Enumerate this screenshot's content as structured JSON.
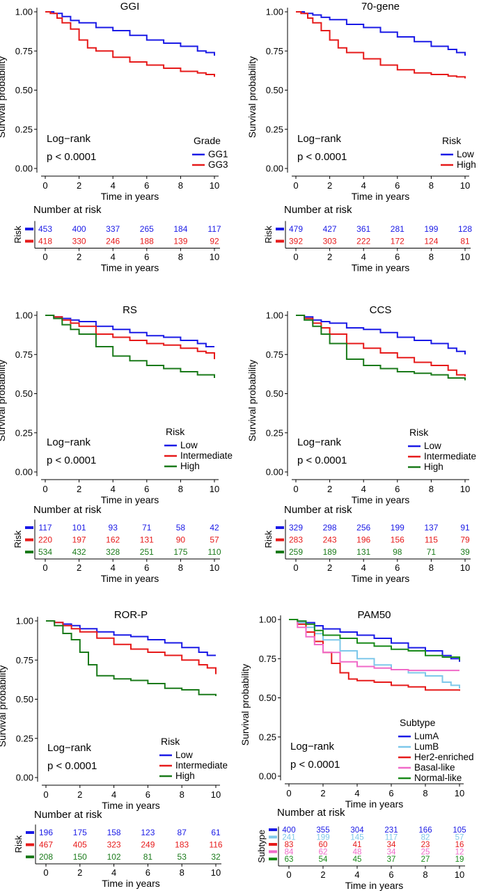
{
  "figure": {
    "y_axis_label": "Survival probability",
    "x_axis_label": "Time in years",
    "risk_table_title": "Number at risk",
    "logrank_label": "Log−rank",
    "pvalue_label": "p < 0.0001"
  },
  "chart_data": [
    {
      "type": "line",
      "title": "GGI",
      "xlabel": "Time in years",
      "ylabel": "Survival probability",
      "xlim": [
        0,
        10
      ],
      "ylim": [
        0,
        1
      ],
      "xticks": [
        0,
        2,
        4,
        6,
        8,
        10
      ],
      "yticks": [
        "0.00",
        "0.25",
        "0.50",
        "0.75",
        "1.00"
      ],
      "legend_title": "Grade",
      "risk_table_label": "Risk",
      "series": [
        {
          "name": "GG1",
          "color": "#1a1ae6",
          "x": [
            0,
            0.5,
            1,
            1.5,
            2,
            3,
            4,
            5,
            6,
            7,
            8,
            9,
            9.5,
            10
          ],
          "y": [
            1.0,
            0.99,
            0.97,
            0.945,
            0.93,
            0.9,
            0.88,
            0.85,
            0.82,
            0.8,
            0.78,
            0.75,
            0.74,
            0.72
          ],
          "at_risk": [
            453,
            400,
            337,
            265,
            184,
            117
          ]
        },
        {
          "name": "GG3",
          "color": "#e61a1a",
          "x": [
            0,
            0.3,
            0.7,
            1,
            1.5,
            2,
            2.5,
            3,
            4,
            5,
            6,
            7,
            8,
            9,
            9.5,
            10
          ],
          "y": [
            1.0,
            0.99,
            0.96,
            0.93,
            0.89,
            0.82,
            0.77,
            0.75,
            0.71,
            0.68,
            0.66,
            0.64,
            0.62,
            0.61,
            0.6,
            0.585
          ],
          "at_risk": [
            418,
            330,
            246,
            188,
            139,
            92
          ]
        }
      ]
    },
    {
      "type": "line",
      "title": "70-gene",
      "xlabel": "Time in years",
      "ylabel": "Survival probability",
      "xlim": [
        0,
        10
      ],
      "ylim": [
        0,
        1
      ],
      "xticks": [
        0,
        2,
        4,
        6,
        8,
        10
      ],
      "yticks": [
        "0.00",
        "0.25",
        "0.50",
        "0.75",
        "1.00"
      ],
      "legend_title": "Risk",
      "risk_table_label": "Risk",
      "series": [
        {
          "name": "Low",
          "color": "#1a1ae6",
          "x": [
            0,
            0.5,
            1,
            1.5,
            2,
            3,
            4,
            5,
            6,
            7,
            8,
            9,
            9.5,
            10
          ],
          "y": [
            1.0,
            0.99,
            0.98,
            0.965,
            0.95,
            0.92,
            0.9,
            0.87,
            0.84,
            0.81,
            0.78,
            0.76,
            0.74,
            0.72
          ],
          "at_risk": [
            479,
            427,
            361,
            281,
            199,
            128
          ]
        },
        {
          "name": "High",
          "color": "#e61a1a",
          "x": [
            0,
            0.3,
            0.7,
            1,
            1.5,
            2,
            2.5,
            3,
            4,
            5,
            6,
            7,
            8,
            9,
            9.5,
            10
          ],
          "y": [
            1.0,
            0.99,
            0.96,
            0.93,
            0.88,
            0.82,
            0.77,
            0.74,
            0.7,
            0.66,
            0.63,
            0.61,
            0.6,
            0.59,
            0.585,
            0.575
          ],
          "at_risk": [
            392,
            303,
            222,
            172,
            124,
            81
          ]
        }
      ]
    },
    {
      "type": "line",
      "title": "RS",
      "xlabel": "Time in years",
      "ylabel": "Survival probability",
      "xlim": [
        0,
        10
      ],
      "ylim": [
        0,
        1
      ],
      "xticks": [
        0,
        2,
        4,
        6,
        8,
        10
      ],
      "yticks": [
        "0.00",
        "0.25",
        "0.50",
        "0.75",
        "1.00"
      ],
      "legend_title": "Risk",
      "risk_table_label": "Risk",
      "series": [
        {
          "name": "Low",
          "color": "#1a1ae6",
          "x": [
            0,
            0.5,
            1,
            1.5,
            2,
            3,
            4,
            5,
            6,
            7,
            8,
            9,
            9.5,
            10
          ],
          "y": [
            1.0,
            0.99,
            0.98,
            0.97,
            0.96,
            0.93,
            0.91,
            0.89,
            0.87,
            0.86,
            0.84,
            0.82,
            0.8,
            0.8
          ],
          "at_risk": [
            117,
            101,
            93,
            71,
            58,
            42
          ]
        },
        {
          "name": "Intermediate",
          "color": "#e61a1a",
          "x": [
            0,
            0.5,
            1,
            1.5,
            2,
            3,
            4,
            5,
            6,
            7,
            8,
            9,
            9.5,
            10
          ],
          "y": [
            1.0,
            0.99,
            0.97,
            0.95,
            0.93,
            0.88,
            0.86,
            0.84,
            0.82,
            0.81,
            0.79,
            0.77,
            0.76,
            0.72
          ],
          "at_risk": [
            220,
            197,
            162,
            131,
            90,
            57
          ]
        },
        {
          "name": "High",
          "color": "#1a7a1a",
          "x": [
            0,
            0.5,
            1,
            1.5,
            2,
            3,
            4,
            5,
            6,
            7,
            8,
            9,
            10
          ],
          "y": [
            1.0,
            0.98,
            0.94,
            0.91,
            0.88,
            0.8,
            0.74,
            0.71,
            0.68,
            0.66,
            0.64,
            0.62,
            0.6
          ],
          "at_risk": [
            534,
            432,
            328,
            251,
            175,
            110
          ]
        }
      ]
    },
    {
      "type": "line",
      "title": "CCS",
      "xlabel": "Time in years",
      "ylabel": "Survival probability",
      "xlim": [
        0,
        10
      ],
      "ylim": [
        0,
        1
      ],
      "xticks": [
        0,
        2,
        4,
        6,
        8,
        10
      ],
      "yticks": [
        "0.00",
        "0.25",
        "0.50",
        "0.75",
        "1.00"
      ],
      "legend_title": "Risk",
      "risk_table_label": "Risk",
      "series": [
        {
          "name": "Low",
          "color": "#1a1ae6",
          "x": [
            0,
            0.5,
            1,
            1.5,
            2,
            3,
            4,
            5,
            6,
            7,
            8,
            9,
            9.5,
            10
          ],
          "y": [
            1.0,
            0.99,
            0.97,
            0.96,
            0.95,
            0.92,
            0.91,
            0.89,
            0.86,
            0.84,
            0.82,
            0.79,
            0.77,
            0.75
          ],
          "at_risk": [
            329,
            298,
            256,
            199,
            137,
            91
          ]
        },
        {
          "name": "Intermediate",
          "color": "#e61a1a",
          "x": [
            0,
            0.5,
            1,
            1.5,
            2,
            3,
            4,
            5,
            6,
            7,
            8,
            9,
            9.5,
            10
          ],
          "y": [
            1.0,
            0.98,
            0.95,
            0.92,
            0.88,
            0.82,
            0.79,
            0.76,
            0.73,
            0.7,
            0.68,
            0.65,
            0.62,
            0.61
          ],
          "at_risk": [
            283,
            243,
            196,
            156,
            115,
            79
          ]
        },
        {
          "name": "High",
          "color": "#1a7a1a",
          "x": [
            0,
            0.5,
            1,
            1.5,
            2,
            3,
            4,
            5,
            6,
            7,
            8,
            9,
            10
          ],
          "y": [
            1.0,
            0.97,
            0.93,
            0.88,
            0.82,
            0.72,
            0.68,
            0.66,
            0.64,
            0.63,
            0.62,
            0.6,
            0.585
          ],
          "at_risk": [
            259,
            189,
            131,
            98,
            71,
            39
          ]
        }
      ]
    },
    {
      "type": "line",
      "title": "ROR-P",
      "xlabel": "Time in years",
      "ylabel": "Survival probability",
      "xlim": [
        0,
        10
      ],
      "ylim": [
        0,
        1
      ],
      "xticks": [
        0,
        2,
        4,
        6,
        8,
        10
      ],
      "yticks": [
        "0.00",
        "0.25",
        "0.50",
        "0.75",
        "1.00"
      ],
      "legend_title": "Risk",
      "risk_table_label": "Risk",
      "series": [
        {
          "name": "Low",
          "color": "#1a1ae6",
          "x": [
            0,
            0.5,
            1,
            1.5,
            2,
            3,
            4,
            5,
            6,
            7,
            8,
            9,
            9.5,
            10
          ],
          "y": [
            1.0,
            0.99,
            0.98,
            0.97,
            0.95,
            0.93,
            0.91,
            0.9,
            0.88,
            0.86,
            0.83,
            0.8,
            0.78,
            0.78
          ],
          "at_risk": [
            196,
            175,
            158,
            123,
            87,
            61
          ]
        },
        {
          "name": "Intermediate",
          "color": "#e61a1a",
          "x": [
            0,
            0.5,
            1,
            1.5,
            2,
            3,
            4,
            5,
            6,
            7,
            8,
            9,
            9.5,
            10
          ],
          "y": [
            1.0,
            0.99,
            0.97,
            0.95,
            0.93,
            0.89,
            0.85,
            0.82,
            0.8,
            0.78,
            0.75,
            0.72,
            0.7,
            0.66
          ],
          "at_risk": [
            467,
            405,
            323,
            249,
            183,
            116
          ]
        },
        {
          "name": "High",
          "color": "#1a7a1a",
          "x": [
            0,
            0.5,
            1,
            1.5,
            2,
            2.5,
            3,
            4,
            5,
            6,
            7,
            8,
            9,
            10
          ],
          "y": [
            1.0,
            0.97,
            0.92,
            0.88,
            0.8,
            0.72,
            0.65,
            0.63,
            0.62,
            0.6,
            0.57,
            0.56,
            0.53,
            0.52
          ],
          "at_risk": [
            208,
            150,
            102,
            81,
            53,
            32
          ]
        }
      ]
    },
    {
      "type": "line",
      "title": "PAM50",
      "xlabel": "Time in years",
      "ylabel": "Survival probability",
      "xlim": [
        0,
        10
      ],
      "ylim": [
        0,
        1
      ],
      "xticks": [
        0,
        2,
        4,
        6,
        8,
        10
      ],
      "yticks": [
        "0.00",
        "0.25",
        "0.50",
        "0.75",
        "1.00"
      ],
      "legend_title": "Subtype",
      "risk_table_label": "Subtype",
      "series": [
        {
          "name": "LumA",
          "color": "#1a1ae6",
          "x": [
            0,
            0.5,
            1,
            1.5,
            2,
            3,
            4,
            5,
            6,
            7,
            8,
            9,
            9.5,
            10
          ],
          "y": [
            1.0,
            0.99,
            0.98,
            0.96,
            0.94,
            0.92,
            0.9,
            0.88,
            0.85,
            0.82,
            0.8,
            0.77,
            0.75,
            0.73
          ],
          "at_risk": [
            400,
            355,
            304,
            231,
            166,
            105
          ]
        },
        {
          "name": "LumB",
          "color": "#7ec8ea",
          "x": [
            0,
            0.5,
            1,
            1.5,
            2,
            3,
            4,
            5,
            6,
            7,
            8,
            9,
            9.5,
            10
          ],
          "y": [
            1.0,
            0.98,
            0.95,
            0.91,
            0.87,
            0.8,
            0.75,
            0.71,
            0.68,
            0.66,
            0.64,
            0.6,
            0.58,
            0.56
          ],
          "at_risk": [
            241,
            199,
            145,
            117,
            82,
            57
          ]
        },
        {
          "name": "Her2-enriched",
          "color": "#e61a1a",
          "x": [
            0,
            0.5,
            1,
            1.5,
            2,
            2.5,
            3,
            3.5,
            4,
            5,
            6,
            7,
            8,
            9,
            10
          ],
          "y": [
            1.0,
            0.97,
            0.92,
            0.86,
            0.79,
            0.72,
            0.66,
            0.62,
            0.61,
            0.6,
            0.58,
            0.57,
            0.55,
            0.55,
            0.545
          ],
          "at_risk": [
            83,
            60,
            41,
            34,
            23,
            16
          ]
        },
        {
          "name": "Basal-like",
          "color": "#f06ac8",
          "x": [
            0,
            0.5,
            1,
            1.5,
            2,
            3,
            4,
            5,
            6,
            7,
            8,
            10
          ],
          "y": [
            1.0,
            0.95,
            0.89,
            0.84,
            0.79,
            0.73,
            0.7,
            0.69,
            0.68,
            0.675,
            0.675,
            0.675
          ],
          "at_risk": [
            84,
            62,
            48,
            34,
            25,
            12
          ]
        },
        {
          "name": "Normal-like",
          "color": "#1a8a1a",
          "x": [
            0,
            0.5,
            1,
            1.5,
            2,
            3,
            4,
            5,
            6,
            7,
            8,
            9,
            10
          ],
          "y": [
            1.0,
            0.99,
            0.97,
            0.93,
            0.9,
            0.88,
            0.85,
            0.83,
            0.81,
            0.8,
            0.77,
            0.76,
            0.74
          ],
          "at_risk": [
            63,
            54,
            45,
            37,
            27,
            19
          ]
        }
      ]
    }
  ]
}
